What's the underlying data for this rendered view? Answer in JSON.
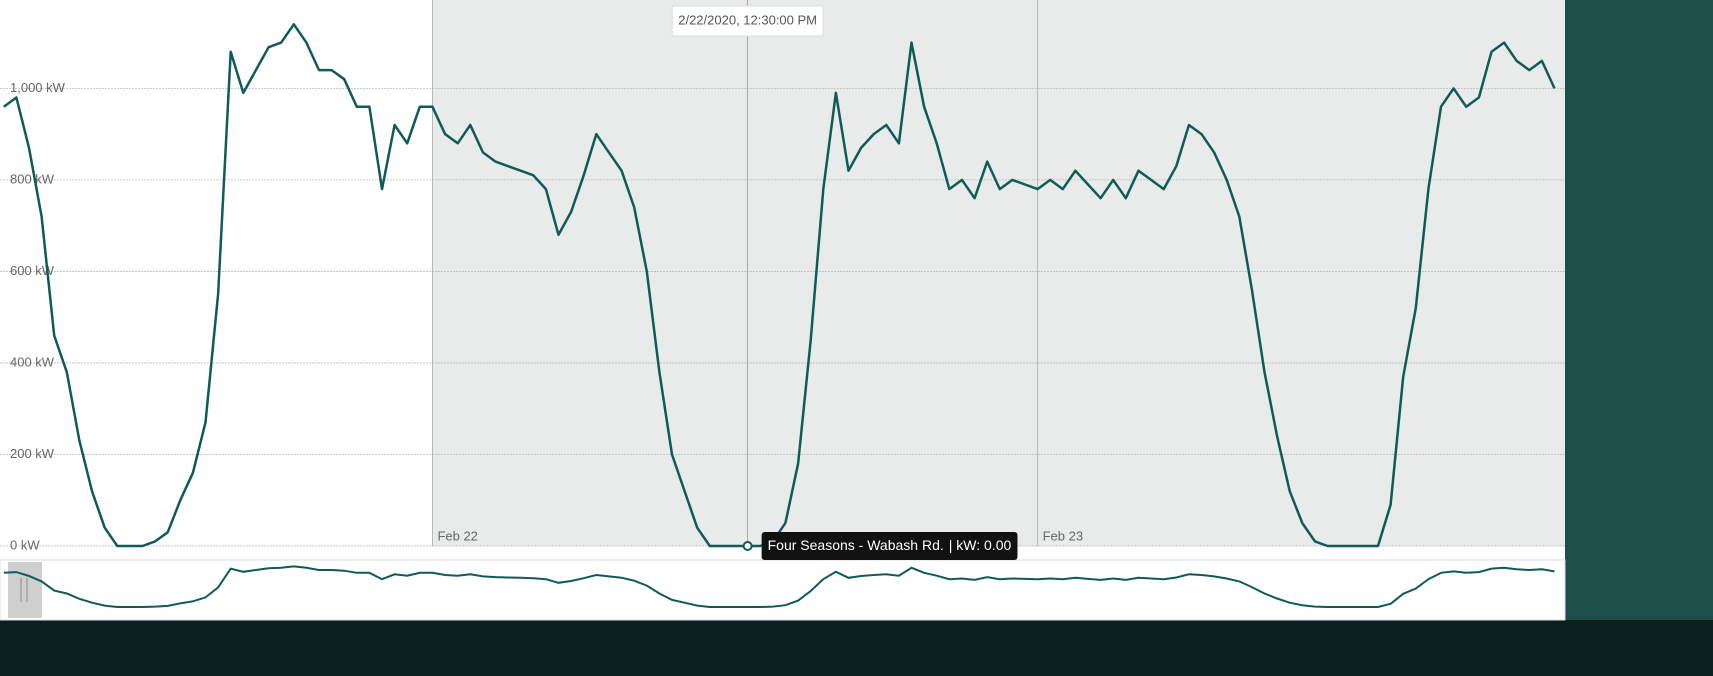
{
  "chart_data": {
    "type": "line",
    "x": [
      "2020-02-21T07:00",
      "2020-02-21T07:30",
      "2020-02-21T08:00",
      "2020-02-21T08:30",
      "2020-02-21T09:00",
      "2020-02-21T09:30",
      "2020-02-21T10:00",
      "2020-02-21T10:30",
      "2020-02-21T11:00",
      "2020-02-21T11:30",
      "2020-02-21T12:00",
      "2020-02-21T12:30",
      "2020-02-21T13:00",
      "2020-02-21T13:30",
      "2020-02-21T14:00",
      "2020-02-21T14:30",
      "2020-02-21T15:00",
      "2020-02-21T15:30",
      "2020-02-21T16:00",
      "2020-02-21T16:30",
      "2020-02-21T17:00",
      "2020-02-21T17:30",
      "2020-02-21T18:00",
      "2020-02-21T18:30",
      "2020-02-21T19:00",
      "2020-02-21T19:30",
      "2020-02-21T20:00",
      "2020-02-21T20:30",
      "2020-02-21T21:00",
      "2020-02-21T21:30",
      "2020-02-21T22:00",
      "2020-02-21T22:30",
      "2020-02-21T23:00",
      "2020-02-21T23:30",
      "2020-02-22T00:00",
      "2020-02-22T00:30",
      "2020-02-22T01:00",
      "2020-02-22T01:30",
      "2020-02-22T02:00",
      "2020-02-22T02:30",
      "2020-02-22T03:00",
      "2020-02-22T03:30",
      "2020-02-22T04:00",
      "2020-02-22T04:30",
      "2020-02-22T05:00",
      "2020-02-22T05:30",
      "2020-02-22T06:00",
      "2020-02-22T06:30",
      "2020-02-22T07:00",
      "2020-02-22T07:30",
      "2020-02-22T08:00",
      "2020-02-22T08:30",
      "2020-02-22T09:00",
      "2020-02-22T09:30",
      "2020-02-22T10:00",
      "2020-02-22T10:30",
      "2020-02-22T11:00",
      "2020-02-22T11:30",
      "2020-02-22T12:00",
      "2020-02-22T12:30",
      "2020-02-22T13:00",
      "2020-02-22T13:30",
      "2020-02-22T14:00",
      "2020-02-22T14:30",
      "2020-02-22T15:00",
      "2020-02-22T15:30",
      "2020-02-22T16:00",
      "2020-02-22T16:30",
      "2020-02-22T17:00",
      "2020-02-22T17:30",
      "2020-02-22T18:00",
      "2020-02-22T18:30",
      "2020-02-22T19:00",
      "2020-02-22T19:30",
      "2020-02-22T20:00",
      "2020-02-22T20:30",
      "2020-02-22T21:00",
      "2020-02-22T21:30",
      "2020-02-22T22:00",
      "2020-02-22T22:30",
      "2020-02-22T23:00",
      "2020-02-22T23:30",
      "2020-02-23T00:00",
      "2020-02-23T00:30",
      "2020-02-23T01:00",
      "2020-02-23T01:30",
      "2020-02-23T02:00",
      "2020-02-23T02:30",
      "2020-02-23T03:00",
      "2020-02-23T03:30",
      "2020-02-23T04:00",
      "2020-02-23T04:30",
      "2020-02-23T05:00",
      "2020-02-23T05:30",
      "2020-02-23T06:00",
      "2020-02-23T06:30",
      "2020-02-23T07:00",
      "2020-02-23T07:30",
      "2020-02-23T08:00",
      "2020-02-23T08:30",
      "2020-02-23T09:00",
      "2020-02-23T09:30",
      "2020-02-23T10:00",
      "2020-02-23T10:30",
      "2020-02-23T11:00",
      "2020-02-23T11:30",
      "2020-02-23T12:00",
      "2020-02-23T12:30",
      "2020-02-23T13:00",
      "2020-02-23T13:30",
      "2020-02-23T14:00",
      "2020-02-23T14:30",
      "2020-02-23T15:00",
      "2020-02-23T15:30",
      "2020-02-23T16:00",
      "2020-02-23T16:30",
      "2020-02-23T17:00",
      "2020-02-23T17:30",
      "2020-02-23T18:00",
      "2020-02-23T18:30",
      "2020-02-23T19:00",
      "2020-02-23T19:30",
      "2020-02-23T20:00",
      "2020-02-23T20:30"
    ],
    "series": [
      {
        "name": "Four Seasons - Wabash Rd.",
        "color": "#0f5b57",
        "values": [
          960,
          980,
          870,
          720,
          460,
          380,
          230,
          120,
          40,
          0,
          0,
          0,
          10,
          30,
          100,
          160,
          270,
          550,
          1080,
          990,
          1040,
          1090,
          1100,
          1140,
          1100,
          1040,
          1040,
          1020,
          960,
          960,
          780,
          920,
          880,
          960,
          960,
          900,
          880,
          920,
          860,
          840,
          830,
          820,
          810,
          780,
          680,
          730,
          810,
          900,
          860,
          820,
          740,
          600,
          380,
          200,
          120,
          40,
          0,
          0,
          0,
          0,
          0,
          10,
          50,
          180,
          450,
          780,
          990,
          820,
          870,
          900,
          920,
          880,
          1100,
          960,
          880,
          780,
          800,
          760,
          840,
          780,
          800,
          790,
          780,
          800,
          780,
          820,
          790,
          760,
          800,
          760,
          820,
          800,
          780,
          830,
          920,
          900,
          860,
          800,
          720,
          560,
          380,
          240,
          120,
          50,
          10,
          0,
          0,
          0,
          0,
          0,
          90,
          370,
          520,
          780,
          960,
          1000,
          960,
          980,
          1080,
          1100,
          1060,
          1040,
          1060,
          1000
        ]
      }
    ],
    "xlim": [
      "2020-02-21T07:10",
      "2020-02-23T20:55"
    ],
    "xticks": [
      {
        "value": "2020-02-22T00:00",
        "label": "Feb 22"
      },
      {
        "value": "2020-02-23T00:00",
        "label": "Feb 23"
      }
    ],
    "ylim": [
      0,
      1180
    ],
    "yticks": [
      {
        "value": 0,
        "label": "0 kW"
      },
      {
        "value": 200,
        "label": "200 kW"
      },
      {
        "value": 400,
        "label": "400 kW"
      },
      {
        "value": 600,
        "label": "600 kW"
      },
      {
        "value": 800,
        "label": "800 kW"
      },
      {
        "value": 1000,
        "label": "1,000 kW"
      }
    ],
    "grid": true,
    "tooltip": {
      "x": "2020-02-22T12:30",
      "y": 0,
      "header": "2/22/2020, 12:30:00 PM",
      "value_label": "| kW: 0.00"
    }
  }
}
